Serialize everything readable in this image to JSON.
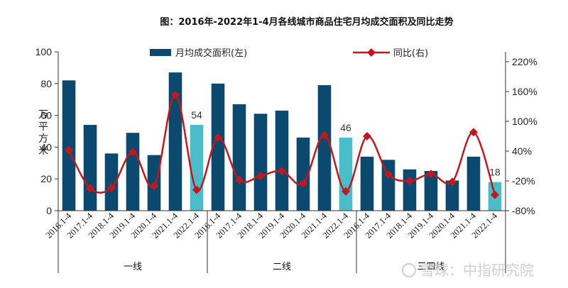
{
  "chart_data": {
    "type": "bar",
    "title": "图：2016年-2022年1-4月各线城市商品住宅月均成交面积及同比走势",
    "ylabel": "万平方米",
    "ylim": [
      0,
      100
    ],
    "y_ticks": [
      0,
      20,
      40,
      60,
      80,
      100
    ],
    "y2lim": [
      -80,
      240
    ],
    "y2_ticks": [
      "-80%",
      "-20%",
      "40%",
      "100%",
      "160%",
      "220%"
    ],
    "y2_tick_values": [
      -80,
      -20,
      40,
      100,
      160,
      220
    ],
    "grid": false,
    "legend_position": "top",
    "colors": {
      "bar": "#0b4a6e",
      "bar_highlight": "#4bbcc9",
      "line": "#c0181e",
      "axis": "#333333"
    },
    "groups": [
      {
        "name": "一线",
        "categories": [
          "2016.1-4",
          "2017.1-4",
          "2018.1-4",
          "2019.1-4",
          "2020.1-4",
          "2021.1-4",
          "2022.1-4"
        ],
        "area": [
          82,
          54,
          36,
          49,
          35,
          87,
          54
        ],
        "yoy": [
          42,
          -35,
          -34,
          38,
          -30,
          153,
          -38
        ]
      },
      {
        "name": "二线",
        "categories": [
          "2016.1-4",
          "2017.1-4",
          "2018.1-4",
          "2019.1-4",
          "2020.1-4",
          "2021.1-4",
          "2022.1-4"
        ],
        "area": [
          80,
          67,
          61,
          63,
          46,
          79,
          46
        ],
        "yoy": [
          67,
          -18,
          -10,
          0,
          -25,
          72,
          -41
        ]
      },
      {
        "name": "三四线",
        "categories": [
          "2016.1-4",
          "2017.1-4",
          "2018.1-4",
          "2019.1-4",
          "2020.1-4",
          "2021.1-4",
          "2022.1-4"
        ],
        "area": [
          34,
          32,
          26,
          25,
          19,
          34,
          18
        ],
        "yoy": [
          70,
          -7,
          -20,
          -6,
          -22,
          78,
          -48
        ]
      }
    ],
    "series": [
      {
        "name": "月均成交面积(左)",
        "type": "bar",
        "axis": "left"
      },
      {
        "name": "同比(右)",
        "type": "line",
        "axis": "right"
      }
    ],
    "data_labels": [
      {
        "group": 0,
        "index": 6,
        "text": "54"
      },
      {
        "group": 1,
        "index": 6,
        "text": "46"
      },
      {
        "group": 2,
        "index": 6,
        "text": "18"
      }
    ]
  },
  "watermark": "雪球：中指研究院"
}
